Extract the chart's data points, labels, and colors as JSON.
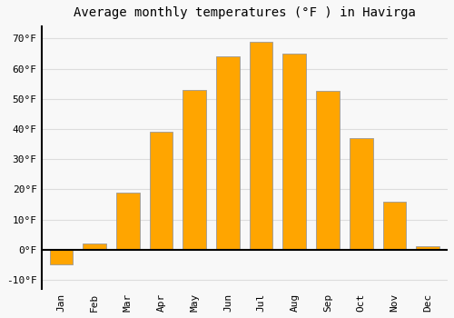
{
  "title": "Average monthly temperatures (°F ) in Havirga",
  "months": [
    "Jan",
    "Feb",
    "Mar",
    "Apr",
    "May",
    "Jun",
    "Jul",
    "Aug",
    "Sep",
    "Oct",
    "Nov",
    "Dec"
  ],
  "values": [
    -5.0,
    2.0,
    19.0,
    39.0,
    53.0,
    64.0,
    69.0,
    65.0,
    52.5,
    37.0,
    16.0,
    1.0
  ],
  "bar_color": "#FFA500",
  "bar_edge_color": "#999999",
  "background_color": "#f8f8f8",
  "plot_bg_color": "#f8f8f8",
  "grid_color": "#dddddd",
  "yticks": [
    -10,
    0,
    10,
    20,
    30,
    40,
    50,
    60,
    70
  ],
  "ylim": [
    -13,
    74
  ],
  "title_fontsize": 10,
  "tick_fontsize": 8,
  "font_family": "monospace"
}
